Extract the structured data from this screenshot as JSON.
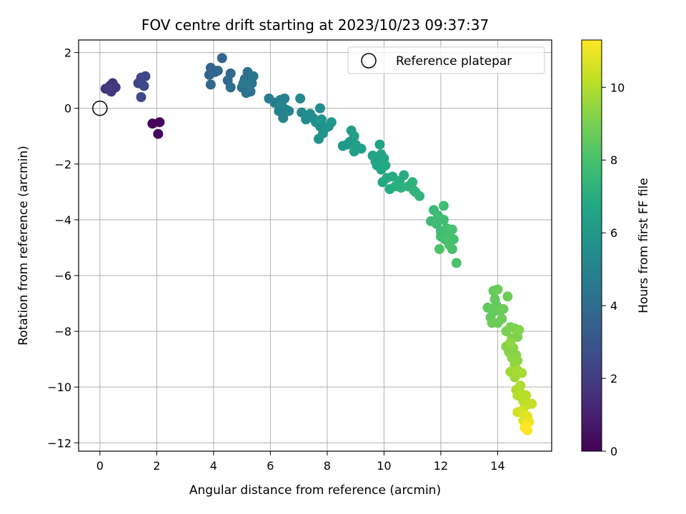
{
  "chart_data": {
    "type": "scatter",
    "title": "FOV centre drift starting at 2023/10/23 09:37:37",
    "xlabel": "Angular distance from reference (arcmin)",
    "ylabel": "Rotation from reference (arcmin)",
    "xlim": [
      -0.75,
      15.9
    ],
    "ylim": [
      -12.3,
      2.45
    ],
    "xticks": [
      0,
      2,
      4,
      6,
      8,
      10,
      12,
      14
    ],
    "yticks": [
      2,
      0,
      -2,
      -4,
      -6,
      -8,
      -10,
      -12
    ],
    "grid": true,
    "legend": {
      "position": "top-right",
      "entries": [
        "Reference platepar"
      ]
    },
    "reference_point": {
      "label": "Reference platepar",
      "x": 0,
      "y": 0
    },
    "colorbar": {
      "label": "Hours from first FF file",
      "colormap": "viridis",
      "range": [
        0,
        11.3
      ],
      "ticks": [
        0,
        2,
        4,
        6,
        8,
        10
      ]
    },
    "points": [
      {
        "x": 1.85,
        "y": -0.55,
        "c": 0.2
      },
      {
        "x": 2.1,
        "y": -0.5,
        "c": 0.2
      },
      {
        "x": 2.05,
        "y": -0.92,
        "c": 0.3
      },
      {
        "x": 0.2,
        "y": 0.7,
        "c": 1.6
      },
      {
        "x": 0.35,
        "y": 0.8,
        "c": 1.7
      },
      {
        "x": 0.45,
        "y": 0.9,
        "c": 1.7
      },
      {
        "x": 0.55,
        "y": 0.75,
        "c": 1.8
      },
      {
        "x": 0.4,
        "y": 0.6,
        "c": 1.8
      },
      {
        "x": 0.3,
        "y": 0.72,
        "c": 1.9
      },
      {
        "x": 1.35,
        "y": 0.9,
        "c": 2.3
      },
      {
        "x": 1.45,
        "y": 1.1,
        "c": 2.4
      },
      {
        "x": 1.6,
        "y": 1.15,
        "c": 2.4
      },
      {
        "x": 1.55,
        "y": 0.8,
        "c": 2.5
      },
      {
        "x": 1.45,
        "y": 0.4,
        "c": 2.5
      },
      {
        "x": 3.85,
        "y": 1.2,
        "c": 3.6
      },
      {
        "x": 3.9,
        "y": 1.45,
        "c": 3.6
      },
      {
        "x": 4.05,
        "y": 1.3,
        "c": 3.7
      },
      {
        "x": 4.3,
        "y": 1.8,
        "c": 3.7
      },
      {
        "x": 3.9,
        "y": 0.85,
        "c": 3.8
      },
      {
        "x": 4.15,
        "y": 1.35,
        "c": 3.8
      },
      {
        "x": 4.5,
        "y": 1.0,
        "c": 3.9
      },
      {
        "x": 4.6,
        "y": 1.25,
        "c": 3.9
      },
      {
        "x": 4.6,
        "y": 0.75,
        "c": 4.0
      },
      {
        "x": 5.0,
        "y": 0.75,
        "c": 4.1
      },
      {
        "x": 5.1,
        "y": 1.05,
        "c": 4.1
      },
      {
        "x": 5.2,
        "y": 1.3,
        "c": 4.2
      },
      {
        "x": 5.3,
        "y": 0.6,
        "c": 4.2
      },
      {
        "x": 5.15,
        "y": 0.55,
        "c": 4.3
      },
      {
        "x": 5.35,
        "y": 0.9,
        "c": 4.3
      },
      {
        "x": 5.4,
        "y": 1.15,
        "c": 4.4
      },
      {
        "x": 5.25,
        "y": 0.8,
        "c": 4.4
      },
      {
        "x": 5.05,
        "y": 0.9,
        "c": 4.5
      },
      {
        "x": 5.95,
        "y": 0.35,
        "c": 4.7
      },
      {
        "x": 6.15,
        "y": 0.2,
        "c": 4.8
      },
      {
        "x": 6.35,
        "y": 0.3,
        "c": 4.8
      },
      {
        "x": 6.5,
        "y": 0.35,
        "c": 4.9
      },
      {
        "x": 6.3,
        "y": -0.1,
        "c": 4.9
      },
      {
        "x": 6.55,
        "y": -0.05,
        "c": 5.0
      },
      {
        "x": 6.45,
        "y": -0.35,
        "c": 5.0
      },
      {
        "x": 6.65,
        "y": -0.1,
        "c": 5.1
      },
      {
        "x": 6.4,
        "y": 0.1,
        "c": 5.1
      },
      {
        "x": 7.05,
        "y": 0.35,
        "c": 5.3
      },
      {
        "x": 7.1,
        "y": -0.15,
        "c": 5.3
      },
      {
        "x": 7.25,
        "y": -0.4,
        "c": 5.4
      },
      {
        "x": 7.4,
        "y": -0.2,
        "c": 5.4
      },
      {
        "x": 7.5,
        "y": -0.35,
        "c": 5.5
      },
      {
        "x": 7.75,
        "y": 0.0,
        "c": 5.5
      },
      {
        "x": 7.6,
        "y": -0.5,
        "c": 5.6
      },
      {
        "x": 7.75,
        "y": -0.65,
        "c": 5.6
      },
      {
        "x": 7.7,
        "y": -1.1,
        "c": 5.7
      },
      {
        "x": 7.95,
        "y": -0.7,
        "c": 5.7
      },
      {
        "x": 7.85,
        "y": -0.9,
        "c": 5.8
      },
      {
        "x": 8.05,
        "y": -0.65,
        "c": 5.8
      },
      {
        "x": 8.15,
        "y": -0.5,
        "c": 5.9
      },
      {
        "x": 7.8,
        "y": -0.4,
        "c": 5.9
      },
      {
        "x": 8.55,
        "y": -1.35,
        "c": 6.1
      },
      {
        "x": 8.7,
        "y": -1.3,
        "c": 6.1
      },
      {
        "x": 8.8,
        "y": -1.2,
        "c": 6.2
      },
      {
        "x": 8.85,
        "y": -0.8,
        "c": 6.2
      },
      {
        "x": 8.95,
        "y": -1.0,
        "c": 6.3
      },
      {
        "x": 9.05,
        "y": -1.4,
        "c": 6.3
      },
      {
        "x": 8.95,
        "y": -1.55,
        "c": 6.4
      },
      {
        "x": 9.2,
        "y": -1.45,
        "c": 6.4
      },
      {
        "x": 9.0,
        "y": -1.3,
        "c": 6.4
      },
      {
        "x": 9.6,
        "y": -1.7,
        "c": 6.5
      },
      {
        "x": 9.7,
        "y": -1.9,
        "c": 6.5
      },
      {
        "x": 9.85,
        "y": -1.3,
        "c": 6.6
      },
      {
        "x": 9.9,
        "y": -1.65,
        "c": 6.6
      },
      {
        "x": 10.0,
        "y": -1.8,
        "c": 6.7
      },
      {
        "x": 9.75,
        "y": -2.05,
        "c": 6.7
      },
      {
        "x": 9.9,
        "y": -2.2,
        "c": 6.7
      },
      {
        "x": 10.05,
        "y": -2.05,
        "c": 6.8
      },
      {
        "x": 9.95,
        "y": -2.65,
        "c": 6.8
      },
      {
        "x": 10.1,
        "y": -2.5,
        "c": 6.8
      },
      {
        "x": 10.2,
        "y": -2.9,
        "c": 6.9
      },
      {
        "x": 10.3,
        "y": -2.45,
        "c": 6.9
      },
      {
        "x": 10.4,
        "y": -2.8,
        "c": 7.0
      },
      {
        "x": 10.55,
        "y": -2.6,
        "c": 7.0
      },
      {
        "x": 10.7,
        "y": -2.4,
        "c": 7.0
      },
      {
        "x": 10.6,
        "y": -2.85,
        "c": 7.1
      },
      {
        "x": 10.85,
        "y": -2.8,
        "c": 7.2
      },
      {
        "x": 11.0,
        "y": -2.65,
        "c": 7.2
      },
      {
        "x": 11.05,
        "y": -2.95,
        "c": 7.3
      },
      {
        "x": 11.25,
        "y": -3.15,
        "c": 7.3
      },
      {
        "x": 11.1,
        "y": -3.0,
        "c": 7.3
      },
      {
        "x": 11.65,
        "y": -4.05,
        "c": 7.6
      },
      {
        "x": 11.75,
        "y": -3.65,
        "c": 7.6
      },
      {
        "x": 11.9,
        "y": -3.85,
        "c": 7.7
      },
      {
        "x": 11.85,
        "y": -4.15,
        "c": 7.7
      },
      {
        "x": 12.0,
        "y": -4.4,
        "c": 7.7
      },
      {
        "x": 12.1,
        "y": -3.5,
        "c": 7.8
      },
      {
        "x": 12.1,
        "y": -4.0,
        "c": 7.8
      },
      {
        "x": 12.0,
        "y": -4.6,
        "c": 7.8
      },
      {
        "x": 12.2,
        "y": -4.3,
        "c": 7.9
      },
      {
        "x": 12.3,
        "y": -4.55,
        "c": 7.9
      },
      {
        "x": 12.45,
        "y": -4.7,
        "c": 7.9
      },
      {
        "x": 12.4,
        "y": -4.35,
        "c": 8.0
      },
      {
        "x": 12.3,
        "y": -4.9,
        "c": 8.0
      },
      {
        "x": 12.4,
        "y": -5.05,
        "c": 8.0
      },
      {
        "x": 12.15,
        "y": -4.7,
        "c": 8.0
      },
      {
        "x": 11.95,
        "y": -5.05,
        "c": 8.1
      },
      {
        "x": 12.55,
        "y": -5.55,
        "c": 8.1
      },
      {
        "x": 13.65,
        "y": -7.15,
        "c": 8.5
      },
      {
        "x": 13.75,
        "y": -7.5,
        "c": 8.5
      },
      {
        "x": 13.85,
        "y": -6.55,
        "c": 8.5
      },
      {
        "x": 13.9,
        "y": -6.85,
        "c": 8.6
      },
      {
        "x": 13.95,
        "y": -7.05,
        "c": 8.6
      },
      {
        "x": 13.85,
        "y": -7.3,
        "c": 8.6
      },
      {
        "x": 14.0,
        "y": -7.7,
        "c": 8.7
      },
      {
        "x": 14.0,
        "y": -6.5,
        "c": 8.7
      },
      {
        "x": 14.1,
        "y": -7.25,
        "c": 8.7
      },
      {
        "x": 14.15,
        "y": -7.55,
        "c": 8.8
      },
      {
        "x": 14.2,
        "y": -7.2,
        "c": 8.8
      },
      {
        "x": 14.35,
        "y": -6.75,
        "c": 8.8
      },
      {
        "x": 13.8,
        "y": -7.7,
        "c": 8.8
      },
      {
        "x": 14.3,
        "y": -8.0,
        "c": 9.0
      },
      {
        "x": 14.45,
        "y": -7.85,
        "c": 9.0
      },
      {
        "x": 14.5,
        "y": -8.25,
        "c": 9.1
      },
      {
        "x": 14.6,
        "y": -7.9,
        "c": 9.1
      },
      {
        "x": 14.7,
        "y": -8.2,
        "c": 9.1
      },
      {
        "x": 14.75,
        "y": -7.95,
        "c": 9.2
      },
      {
        "x": 14.3,
        "y": -8.55,
        "c": 9.2
      },
      {
        "x": 14.4,
        "y": -8.75,
        "c": 9.2
      },
      {
        "x": 14.55,
        "y": -8.6,
        "c": 9.3
      },
      {
        "x": 14.5,
        "y": -8.95,
        "c": 9.3
      },
      {
        "x": 14.65,
        "y": -8.85,
        "c": 9.3
      },
      {
        "x": 14.7,
        "y": -9.05,
        "c": 9.4
      },
      {
        "x": 14.45,
        "y": -8.4,
        "c": 9.4
      },
      {
        "x": 14.6,
        "y": -9.2,
        "c": 9.4
      },
      {
        "x": 14.45,
        "y": -9.45,
        "c": 9.7
      },
      {
        "x": 14.6,
        "y": -9.65,
        "c": 9.7
      },
      {
        "x": 14.7,
        "y": -9.4,
        "c": 9.8
      },
      {
        "x": 14.85,
        "y": -9.5,
        "c": 9.8
      },
      {
        "x": 14.65,
        "y": -10.1,
        "c": 9.9
      },
      {
        "x": 14.8,
        "y": -9.95,
        "c": 9.9
      },
      {
        "x": 14.7,
        "y": -10.3,
        "c": 10.0
      },
      {
        "x": 14.85,
        "y": -10.25,
        "c": 10.0
      },
      {
        "x": 14.9,
        "y": -10.5,
        "c": 10.1
      },
      {
        "x": 15.0,
        "y": -10.3,
        "c": 10.1
      },
      {
        "x": 14.95,
        "y": -10.7,
        "c": 10.2
      },
      {
        "x": 15.1,
        "y": -10.6,
        "c": 10.3
      },
      {
        "x": 15.2,
        "y": -10.6,
        "c": 10.3
      },
      {
        "x": 14.7,
        "y": -10.9,
        "c": 10.5
      },
      {
        "x": 14.85,
        "y": -10.85,
        "c": 10.6
      },
      {
        "x": 14.95,
        "y": -11.0,
        "c": 10.7
      },
      {
        "x": 15.05,
        "y": -11.05,
        "c": 10.8
      },
      {
        "x": 14.9,
        "y": -11.2,
        "c": 10.8
      },
      {
        "x": 15.0,
        "y": -11.3,
        "c": 10.9
      },
      {
        "x": 15.1,
        "y": -11.25,
        "c": 11.0
      },
      {
        "x": 14.95,
        "y": -11.45,
        "c": 11.1
      },
      {
        "x": 15.05,
        "y": -11.55,
        "c": 11.2
      },
      {
        "x": 15.0,
        "y": -11.4,
        "c": 11.3
      }
    ]
  }
}
